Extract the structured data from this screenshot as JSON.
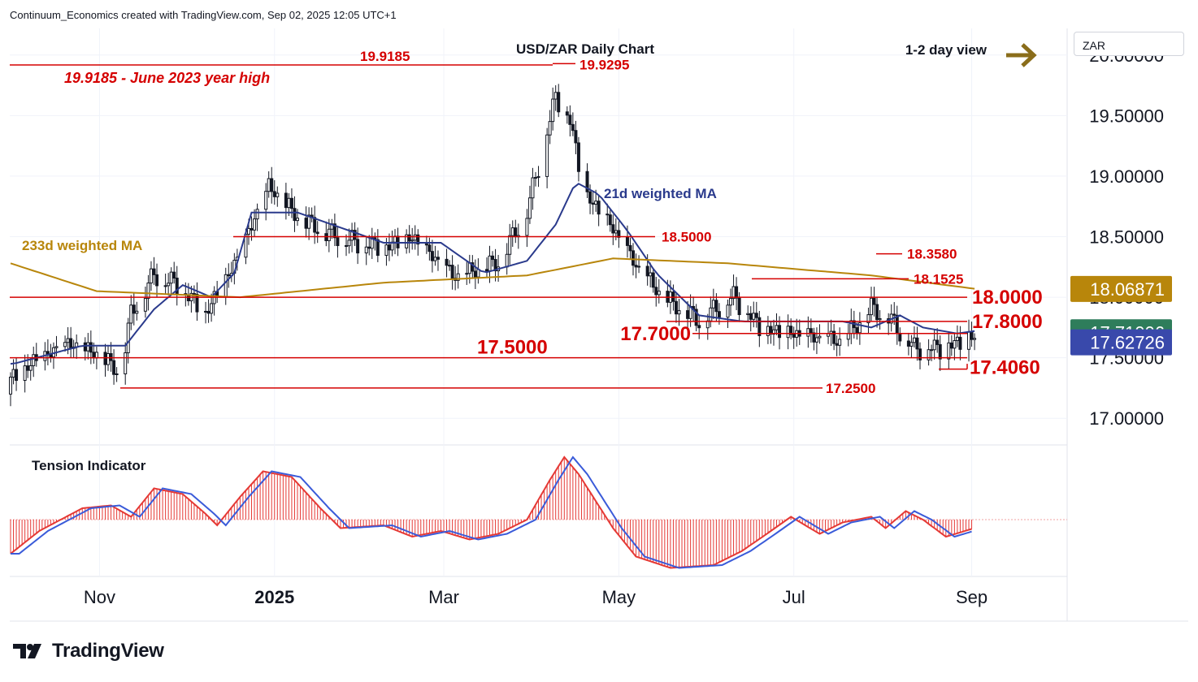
{
  "header": {
    "credit": "Continuum_Economics created with TradingView.com, Sep 02, 2025 12:05 UTC+1"
  },
  "brand": {
    "logo_icon": "tradingview-logo-icon",
    "name": "TradingView"
  },
  "price_scale": {
    "symbol": "ZAR"
  },
  "colors": {
    "up_candle": "#131722",
    "down_candle": "#131722",
    "level_line": "#d50000",
    "ma21": "#2a3a8c",
    "ma233": "#b8860b",
    "tension_hist": "#e53935",
    "tension_line": "#3a5bd9",
    "badge_ma233": "#b8860b",
    "badge_ma21": "#2e7d5b",
    "badge_price": "#3949ab",
    "arrow": "#8a6d1b"
  },
  "chart_data": {
    "type": "candlestick",
    "title": "USD/ZAR Daily Chart",
    "view_label": "1-2 day view",
    "view_arrow_icon": "right-arrow-icon",
    "ylim": [
      16.78,
      20.22
    ],
    "y_ticks": [
      "17.00000",
      "17.50000",
      "18.00000",
      "18.50000",
      "19.00000",
      "19.50000",
      "20.00000"
    ],
    "x_ticks": [
      "Nov",
      "2025",
      "Mar",
      "May",
      "Jul",
      "Sep"
    ],
    "x_tick_days": [
      31,
      92,
      151,
      212,
      273,
      335
    ],
    "start_date": "2024-10-01",
    "series": [
      {
        "name": "21d weighted MA",
        "points": [
          [
            1,
            17.45
          ],
          [
            25,
            17.6
          ],
          [
            40,
            17.6
          ],
          [
            50,
            17.9
          ],
          [
            60,
            18.1
          ],
          [
            70,
            18.0
          ],
          [
            78,
            18.2
          ],
          [
            84,
            18.7
          ],
          [
            100,
            18.7
          ],
          [
            130,
            18.45
          ],
          [
            150,
            18.45
          ],
          [
            165,
            18.2
          ],
          [
            180,
            18.3
          ],
          [
            190,
            18.6
          ],
          [
            197,
            18.95
          ],
          [
            205,
            18.85
          ],
          [
            215,
            18.55
          ],
          [
            225,
            18.2
          ],
          [
            240,
            17.85
          ],
          [
            255,
            17.8
          ],
          [
            270,
            17.8
          ],
          [
            290,
            17.8
          ],
          [
            300,
            17.75
          ],
          [
            310,
            17.85
          ],
          [
            318,
            17.75
          ],
          [
            330,
            17.7
          ],
          [
            336,
            17.72
          ]
        ]
      },
      {
        "name": "233d weighted MA",
        "points": [
          [
            0,
            18.28
          ],
          [
            30,
            18.05
          ],
          [
            80,
            18.0
          ],
          [
            130,
            18.12
          ],
          [
            180,
            18.18
          ],
          [
            210,
            18.32
          ],
          [
            250,
            18.28
          ],
          [
            300,
            18.18
          ],
          [
            336,
            18.07
          ]
        ]
      }
    ],
    "candles_summary": [
      [
        0,
        17.2,
        17.4
      ],
      [
        8,
        17.4,
        17.5
      ],
      [
        20,
        17.5,
        17.7
      ],
      [
        32,
        17.6,
        17.4
      ],
      [
        38,
        17.4,
        17.3
      ],
      [
        42,
        17.6,
        18.1
      ],
      [
        50,
        18.2,
        18.15
      ],
      [
        58,
        18.1,
        18.1
      ],
      [
        68,
        17.9,
        17.8
      ],
      [
        78,
        18.0,
        18.5
      ],
      [
        90,
        18.7,
        19.1
      ],
      [
        100,
        18.8,
        18.5
      ],
      [
        110,
        18.6,
        18.45
      ],
      [
        120,
        18.5,
        18.4
      ],
      [
        130,
        18.45,
        18.35
      ],
      [
        140,
        18.45,
        18.5
      ],
      [
        155,
        18.2,
        18.1
      ],
      [
        170,
        18.25,
        18.3
      ],
      [
        180,
        18.5,
        18.9
      ],
      [
        190,
        19.5,
        19.8
      ],
      [
        195,
        19.7,
        19.2
      ],
      [
        200,
        18.8,
        18.9
      ],
      [
        210,
        18.6,
        18.5
      ],
      [
        218,
        18.3,
        18.2
      ],
      [
        228,
        18.1,
        17.85
      ],
      [
        240,
        17.8,
        17.8
      ],
      [
        252,
        17.9,
        18.1
      ],
      [
        262,
        17.8,
        17.65
      ],
      [
        275,
        17.6,
        17.75
      ],
      [
        290,
        17.7,
        17.55
      ],
      [
        300,
        17.6,
        18.2
      ],
      [
        306,
        17.9,
        17.75
      ],
      [
        315,
        17.6,
        17.55
      ],
      [
        325,
        17.5,
        17.65
      ],
      [
        336,
        17.7,
        17.63
      ]
    ],
    "levels": [
      {
        "label": "19.9185 - June 2023 year high",
        "value": 19.9185
      },
      {
        "label": "19.9185",
        "value": 19.9185
      },
      {
        "label": "19.9295",
        "value": 19.9295
      },
      {
        "label": "18.5000",
        "value": 18.5
      },
      {
        "label": "18.3580",
        "value": 18.358
      },
      {
        "label": "18.1525",
        "value": 18.1525
      },
      {
        "label": "18.0000",
        "value": 18.0
      },
      {
        "label": "17.8000",
        "value": 17.8
      },
      {
        "label": "17.7000",
        "value": 17.7
      },
      {
        "label": "17.5000",
        "value": 17.5
      },
      {
        "label": "17.4060",
        "value": 17.406
      },
      {
        "label": "17.2500",
        "value": 17.25
      }
    ],
    "annotations": {
      "ma21": "21d weighted MA",
      "ma233": "233d weighted MA"
    },
    "last_values": {
      "ma233": "18.06871",
      "ma21": "17.71006",
      "price": "17.62726",
      "ma233_num": 18.06871,
      "ma21_num": 17.71006,
      "price_num": 17.62726
    },
    "indicator": {
      "title": "Tension Indicator",
      "points": [
        [
          0,
          -0.6
        ],
        [
          10,
          -0.2
        ],
        [
          25,
          0.2
        ],
        [
          35,
          0.25
        ],
        [
          42,
          0.05
        ],
        [
          50,
          0.55
        ],
        [
          60,
          0.45
        ],
        [
          68,
          0.1
        ],
        [
          72,
          -0.1
        ],
        [
          80,
          0.4
        ],
        [
          88,
          0.85
        ],
        [
          98,
          0.75
        ],
        [
          108,
          0.2
        ],
        [
          115,
          -0.15
        ],
        [
          130,
          -0.1
        ],
        [
          140,
          -0.3
        ],
        [
          150,
          -0.2
        ],
        [
          160,
          -0.35
        ],
        [
          170,
          -0.25
        ],
        [
          180,
          0.0
        ],
        [
          188,
          0.7
        ],
        [
          193,
          1.1
        ],
        [
          198,
          0.8
        ],
        [
          210,
          -0.15
        ],
        [
          218,
          -0.65
        ],
        [
          230,
          -0.85
        ],
        [
          245,
          -0.8
        ],
        [
          255,
          -0.55
        ],
        [
          265,
          -0.2
        ],
        [
          272,
          0.05
        ],
        [
          282,
          -0.25
        ],
        [
          290,
          -0.05
        ],
        [
          300,
          0.05
        ],
        [
          305,
          -0.15
        ],
        [
          312,
          0.15
        ],
        [
          318,
          0.0
        ],
        [
          326,
          -0.3
        ],
        [
          336,
          -0.15
        ]
      ]
    }
  }
}
